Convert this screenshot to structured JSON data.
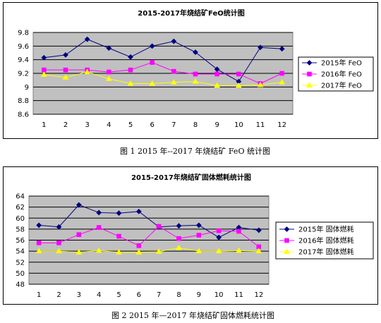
{
  "chart_data": [
    {
      "type": "line",
      "title": "2015-2017年烧结矿FeO统计图",
      "caption": "图 1   2015 年--2017 年烧结矿 FeO 统计图",
      "categories": [
        "1",
        "2",
        "3",
        "4",
        "5",
        "6",
        "7",
        "8",
        "9",
        "10",
        "11",
        "12"
      ],
      "y_ticks": [
        "9.8",
        "9.6",
        "9.4",
        "9.2",
        "9",
        "8.8",
        "8.6"
      ],
      "ylim": [
        8.6,
        9.8
      ],
      "grid": true,
      "legend_position": "right",
      "series": [
        {
          "name": "2015年  FeO",
          "color": "#000080",
          "marker": "diamond",
          "values": [
            9.43,
            9.47,
            9.7,
            9.57,
            9.44,
            9.6,
            9.67,
            9.51,
            9.26,
            9.08,
            9.58,
            9.56
          ]
        },
        {
          "name": "2016年  FeO",
          "color": "#FF00FF",
          "marker": "square",
          "values": [
            9.25,
            9.25,
            9.25,
            9.22,
            9.25,
            9.36,
            9.23,
            9.19,
            9.19,
            9.19,
            9.05,
            9.2
          ]
        },
        {
          "name": "2017年  FeO",
          "color": "#FFFF00",
          "marker": "triangle",
          "values": [
            9.18,
            9.14,
            9.22,
            9.12,
            9.05,
            9.05,
            9.07,
            9.08,
            9.02,
            9.02,
            9.03,
            9.07
          ]
        }
      ]
    },
    {
      "type": "line",
      "title": "2015-2017年烧结矿固体燃耗统计图",
      "caption": "图 2    2015 年—2017 年烧结矿固体燃耗统计图",
      "categories": [
        "1",
        "2",
        "3",
        "4",
        "5",
        "6",
        "7",
        "8",
        "9",
        "10",
        "11",
        "12"
      ],
      "y_ticks": [
        "64",
        "62",
        "60",
        "58",
        "56",
        "54",
        "52",
        "50",
        "48"
      ],
      "ylim": [
        48,
        64
      ],
      "grid": true,
      "legend_position": "right",
      "series": [
        {
          "name": "2015年  固体燃耗",
          "color": "#000080",
          "marker": "diamond",
          "values": [
            58.7,
            58.4,
            62.4,
            61.0,
            60.9,
            61.2,
            58.4,
            58.6,
            58.7,
            56.5,
            58.3,
            57.8
          ]
        },
        {
          "name": "2016年  固体燃耗",
          "color": "#FF00FF",
          "marker": "square",
          "values": [
            55.5,
            55.5,
            57.0,
            58.3,
            56.7,
            55.0,
            58.5,
            56.3,
            56.9,
            57.7,
            57.6,
            54.8
          ]
        },
        {
          "name": "2017年  固体燃耗",
          "color": "#FFFF00",
          "marker": "triangle",
          "values": [
            54.0,
            54.0,
            53.8,
            54.1,
            53.8,
            53.8,
            53.9,
            54.6,
            54.0,
            54.0,
            54.1,
            54.0
          ]
        }
      ]
    }
  ]
}
